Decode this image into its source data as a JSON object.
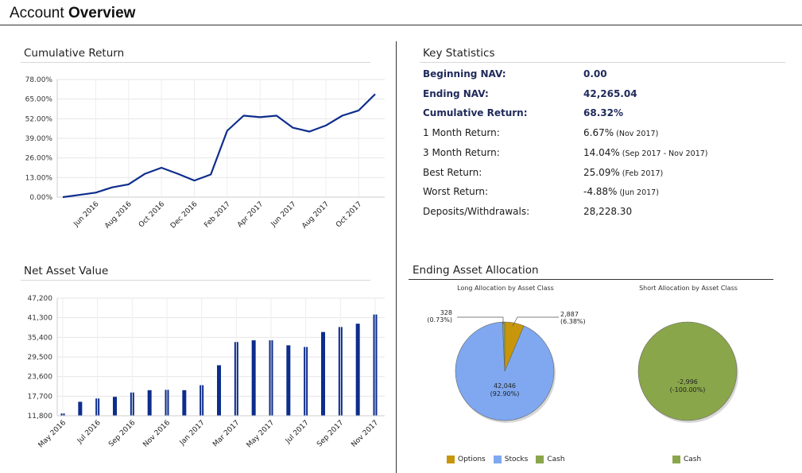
{
  "page": {
    "title_regular": "Account",
    "title_bold": "Overview"
  },
  "cumulative_return": {
    "title": "Cumulative Return",
    "chart_data": {
      "type": "line",
      "title": "Cumulative Return",
      "y_ticks": [
        "78.00%",
        "65.00%",
        "52.00%",
        "39.00%",
        "26.00%",
        "13.00%",
        "0.00%"
      ],
      "ylim": [
        0,
        78
      ],
      "x_tick_labels": [
        "Jun 2016",
        "Aug 2016",
        "Oct 2016",
        "Dec 2016",
        "Feb 2017",
        "Apr 2017",
        "Jun 2017",
        "Aug 2017",
        "Oct 2017"
      ],
      "series": [
        {
          "name": "Cumulative Return",
          "values": [
            0.0,
            1.5,
            3.0,
            6.5,
            8.5,
            15.5,
            19.5,
            15.5,
            11.0,
            15.0,
            44.0,
            54.0,
            53.0,
            54.0,
            46.0,
            43.5,
            47.5,
            54.0,
            57.5,
            68.32
          ]
        }
      ]
    }
  },
  "net_asset_value": {
    "title": "Net Asset Value",
    "chart_data": {
      "type": "bar",
      "title": "Net Asset Value",
      "y_ticks": [
        "47,200",
        "41,300",
        "35,400",
        "29,500",
        "23,600",
        "17,700",
        "11,800"
      ],
      "ylim": [
        11800,
        47200
      ],
      "x_tick_labels": [
        "May 2016",
        "Jul 2016",
        "Sep 2016",
        "Nov 2016",
        "Jan 2017",
        "Mar 2017",
        "May 2017",
        "Jul 2017",
        "Sep 2017",
        "Nov 2017"
      ],
      "values": [
        12500,
        16000,
        17000,
        17500,
        18800,
        19500,
        19600,
        19500,
        21000,
        27000,
        34000,
        34500,
        34500,
        33000,
        32500,
        37000,
        38500,
        39500,
        42265
      ]
    }
  },
  "key_statistics": {
    "title": "Key Statistics",
    "rows": [
      {
        "label": "Beginning NAV:",
        "value": "0.00",
        "note": ""
      },
      {
        "label": "Ending NAV:",
        "value": "42,265.04",
        "note": ""
      },
      {
        "label": "Cumulative Return:",
        "value": "68.32%",
        "note": ""
      },
      {
        "label": "1 Month Return:",
        "value": "6.67%",
        "note": "(Nov 2017)"
      },
      {
        "label": "3 Month Return:",
        "value": "14.04%",
        "note": "(Sep 2017 - Nov 2017)"
      },
      {
        "label": "Best Return:",
        "value": "25.09%",
        "note": "(Feb 2017)"
      },
      {
        "label": "Worst Return:",
        "value": "-4.88%",
        "note": "(Jun 2017)"
      },
      {
        "label": "Deposits/Withdrawals:",
        "value": "28,228.30",
        "note": ""
      }
    ]
  },
  "asset_allocation": {
    "title": "Ending Asset Allocation",
    "long": {
      "title": "Long Allocation by Asset Class",
      "chart_data": {
        "type": "pie",
        "slices": [
          {
            "name": "Options",
            "value": 2887,
            "pct": "(6.38%)",
            "label": "2,887",
            "color": "#c8960a"
          },
          {
            "name": "Stocks",
            "value": 42046,
            "pct": "(92.90%)",
            "label": "42,046",
            "color": "#7fa8f0"
          },
          {
            "name": "Cash",
            "value": 328,
            "pct": "(0.73%)",
            "label": "328",
            "color": "#8aa64a"
          }
        ]
      },
      "legend": [
        {
          "label": "Options",
          "color": "#c8960a"
        },
        {
          "label": "Stocks",
          "color": "#7fa8f0"
        },
        {
          "label": "Cash",
          "color": "#8aa64a"
        }
      ]
    },
    "short": {
      "title": "Short Allocation by Asset Class",
      "chart_data": {
        "type": "pie",
        "slices": [
          {
            "name": "Cash",
            "value": -2996,
            "pct": "(-100.00%)",
            "label": "-2,996",
            "color": "#8aa64a"
          }
        ]
      },
      "legend": [
        {
          "label": "Cash",
          "color": "#8aa64a"
        }
      ]
    }
  }
}
